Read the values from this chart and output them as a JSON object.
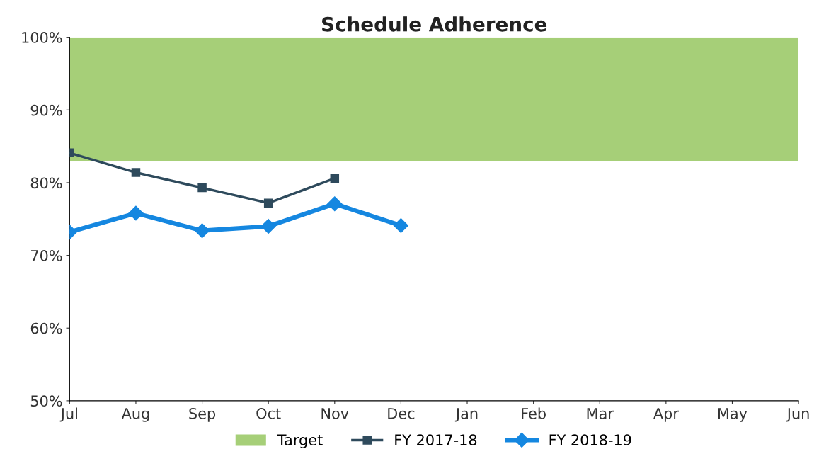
{
  "chart_data": {
    "type": "line",
    "title": "Schedule Adherence",
    "categories": [
      "Jul",
      "Aug",
      "Sep",
      "Oct",
      "Nov",
      "Dec",
      "Jan",
      "Feb",
      "Mar",
      "Apr",
      "May",
      "Jun"
    ],
    "series": [
      {
        "name": "FY 2017-18",
        "color": "#2e4a5c",
        "marker": "square",
        "values": [
          84.1,
          81.4,
          79.3,
          77.2,
          80.6,
          null,
          null,
          null,
          null,
          null,
          null,
          null
        ]
      },
      {
        "name": "FY 2018-19",
        "color": "#1587e0",
        "marker": "diamond",
        "values": [
          73.2,
          75.8,
          73.4,
          74.0,
          77.1,
          74.1,
          null,
          null,
          null,
          null,
          null,
          null
        ]
      }
    ],
    "bands": [
      {
        "axis": "y",
        "from": 83,
        "to": 100,
        "label": "Target",
        "color": "#a6cf78"
      }
    ],
    "ylim": [
      50,
      100
    ],
    "yticks": [
      {
        "value": 50,
        "label": "50%"
      },
      {
        "value": 60,
        "label": "60%"
      },
      {
        "value": 70,
        "label": "70%"
      },
      {
        "value": 80,
        "label": "80%"
      },
      {
        "value": 90,
        "label": "90%"
      },
      {
        "value": 100,
        "label": "100%"
      }
    ],
    "grid": false,
    "legend": "bottom",
    "line_style": "solid"
  }
}
